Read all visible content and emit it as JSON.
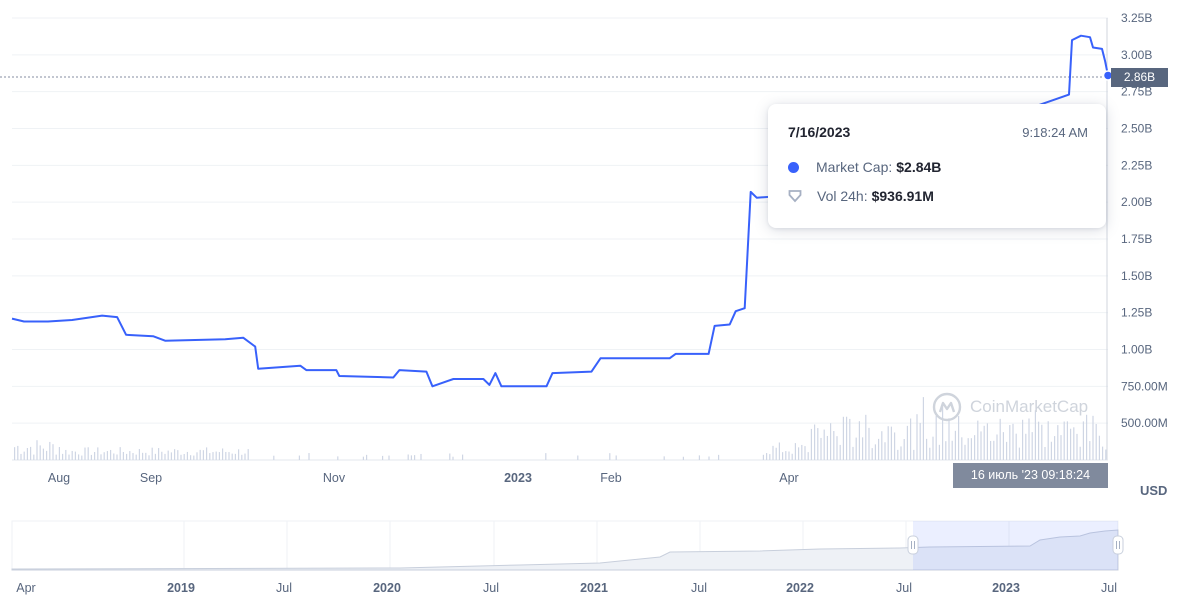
{
  "chart_data": {
    "type": "line",
    "series": [
      {
        "values_description": "market cap, main panel",
        "points": [
          [
            "2022-07-16",
            1.21
          ],
          [
            "2022-07-20",
            1.19
          ],
          [
            "2022-07-28",
            1.19
          ],
          [
            "2022-08-05",
            1.2
          ],
          [
            "2022-08-15",
            1.23
          ],
          [
            "2022-08-20",
            1.22
          ],
          [
            "2022-08-23",
            1.1
          ],
          [
            "2022-09-01",
            1.09
          ],
          [
            "2022-09-05",
            1.06
          ],
          [
            "2022-09-25",
            1.07
          ],
          [
            "2022-10-01",
            1.08
          ],
          [
            "2022-10-05",
            1.02
          ],
          [
            "2022-10-06",
            0.87
          ],
          [
            "2022-10-20",
            0.89
          ],
          [
            "2022-10-22",
            0.86
          ],
          [
            "2022-11-01",
            0.86
          ],
          [
            "2022-11-02",
            0.82
          ],
          [
            "2022-11-20",
            0.81
          ],
          [
            "2022-11-22",
            0.86
          ],
          [
            "2022-12-01",
            0.85
          ],
          [
            "2022-12-03",
            0.75
          ],
          [
            "2022-12-10",
            0.8
          ],
          [
            "2022-12-20",
            0.8
          ],
          [
            "2022-12-22",
            0.76
          ],
          [
            "2022-12-24",
            0.84
          ],
          [
            "2022-12-26",
            0.75
          ],
          [
            "2023-01-10",
            0.75
          ],
          [
            "2023-01-12",
            0.84
          ],
          [
            "2023-01-25",
            0.85
          ],
          [
            "2023-01-28",
            0.94
          ],
          [
            "2023-02-20",
            0.94
          ],
          [
            "2023-02-22",
            0.97
          ],
          [
            "2023-03-05",
            0.97
          ],
          [
            "2023-03-07",
            1.16
          ],
          [
            "2023-03-12",
            1.17
          ],
          [
            "2023-03-14",
            1.26
          ],
          [
            "2023-03-17",
            1.28
          ],
          [
            "2023-03-19",
            2.07
          ],
          [
            "2023-03-21",
            2.03
          ],
          [
            "2023-03-28",
            2.04
          ],
          [
            "2023-07-03",
            2.73
          ],
          [
            "2023-07-04",
            3.1
          ],
          [
            "2023-07-07",
            3.13
          ],
          [
            "2023-07-10",
            3.12
          ],
          [
            "2023-07-11",
            3.05
          ],
          [
            "2023-07-14",
            3.04
          ],
          [
            "2023-07-15",
            2.96
          ],
          [
            "2023-07-16",
            2.86
          ]
        ]
      }
    ],
    "ylim": [
      0.25,
      3.25
    ],
    "y_ticks": [
      "3.25B",
      "3.00B",
      "2.75B",
      "2.50B",
      "2.25B",
      "2.00B",
      "1.75B",
      "1.50B",
      "1.25B",
      "1.00B",
      "750.00M",
      "500.00M"
    ],
    "x_ticks": [
      "Aug",
      "Sep",
      "Nov",
      "2023",
      "Feb",
      "Apr"
    ],
    "current_value_label": "2.86B",
    "crosshair_time_label": "16 июль '23  09:18:24",
    "currency_label": "USD",
    "tooltip": {
      "date": "7/16/2023",
      "time": "9:18:24 AM",
      "market_cap_label": "Market Cap:",
      "market_cap_value": "$2.84B",
      "vol_label": "Vol 24h:",
      "vol_value": "$936.91M"
    },
    "watermark": "CoinMarketCap",
    "navigator": {
      "x_ticks": [
        "Apr",
        "2019",
        "Jul",
        "2020",
        "Jul",
        "2021",
        "Jul",
        "2022",
        "Jul",
        "2023",
        "Jul"
      ]
    },
    "colors": {
      "line": "#3861fb",
      "volume": "#cfd6e4",
      "navigator_fill": "#eef1f6"
    }
  }
}
